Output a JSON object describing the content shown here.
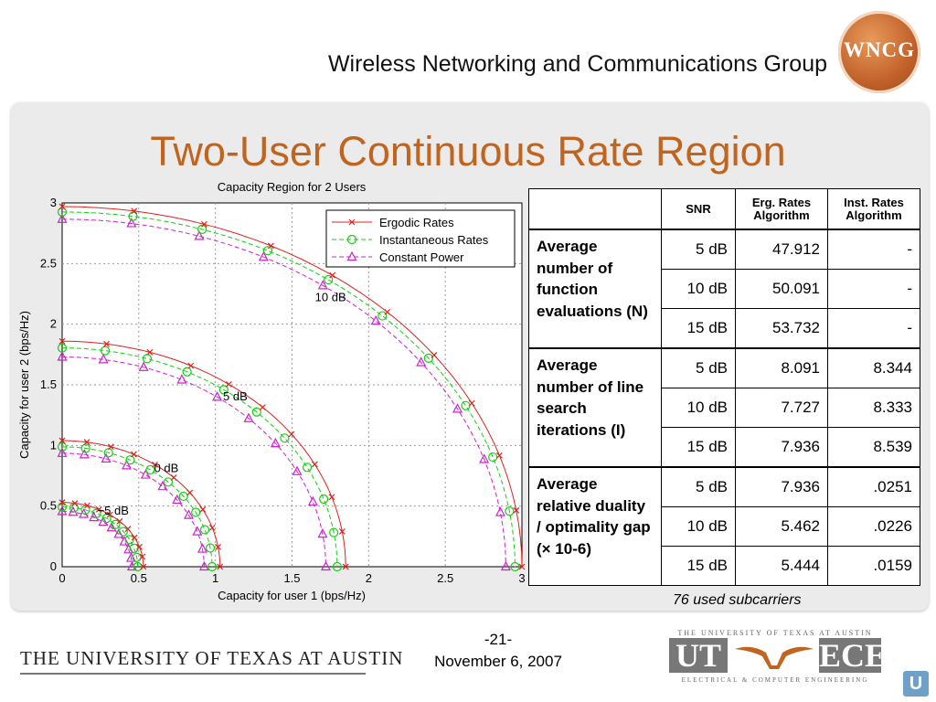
{
  "header": {
    "org_name": "Wireless Networking and Communications Group",
    "logo_text": "WNCG"
  },
  "slide": {
    "title": "Two-User Continuous Rate Region"
  },
  "colors": {
    "title": "#c0641e",
    "ergodic": "#e02020",
    "instantaneous": "#10d010",
    "constant": "#d020d0"
  },
  "chart_data": {
    "type": "line",
    "title": "Capacity Region for 2 Users",
    "xlabel": "Capacity for user 1 (bps/Hz)",
    "ylabel": "Capacity for user 2 (bps/Hz)",
    "xlim": [
      0,
      3
    ],
    "ylim": [
      0,
      3
    ],
    "xticks": [
      "0",
      "0.5",
      "1",
      "1.5",
      "2",
      "2.5",
      "3"
    ],
    "yticks": [
      "0",
      "0.5",
      "1",
      "1.5",
      "2",
      "2.5",
      "3"
    ],
    "grid": true,
    "legend_position": "top-right",
    "legend": [
      "Ergodic Rates",
      "Instantaneous Rates",
      "Constant Power"
    ],
    "snr_labels": [
      {
        "text": "10 dB",
        "x": 1.65,
        "y": 2.19
      },
      {
        "text": "5 dB",
        "x": 1.05,
        "y": 1.37
      },
      {
        "text": "0 dB",
        "x": 0.6,
        "y": 0.78
      },
      {
        "text": "−5 dB",
        "x": 0.23,
        "y": 0.43
      }
    ],
    "curves": [
      {
        "snr": "10 dB",
        "x_max": 3.0,
        "y_max": 2.97,
        "inst_scale": 0.985,
        "const_scale": 0.965
      },
      {
        "snr": "5 dB",
        "x_max": 1.85,
        "y_max": 1.86,
        "inst_scale": 0.97,
        "const_scale": 0.93
      },
      {
        "snr": "0 dB",
        "x_max": 1.03,
        "y_max": 1.04,
        "inst_scale": 0.95,
        "const_scale": 0.9
      },
      {
        "snr": "-5 dB",
        "x_max": 0.53,
        "y_max": 0.53,
        "inst_scale": 0.93,
        "const_scale": 0.86
      }
    ]
  },
  "table": {
    "headers": [
      "",
      "SNR",
      "Erg. Rates Algorithm",
      "Inst. Rates Algorithm"
    ],
    "groups": [
      {
        "label": "Average number of function evaluations (N)",
        "rows": [
          {
            "snr": "5 dB",
            "erg": "47.912",
            "inst": "-"
          },
          {
            "snr": "10 dB",
            "erg": "50.091",
            "inst": "-"
          },
          {
            "snr": "15 dB",
            "erg": "53.732",
            "inst": "-"
          }
        ]
      },
      {
        "label": "Average number of line search iterations (I)",
        "rows": [
          {
            "snr": "5 dB",
            "erg": "8.091",
            "inst": "8.344"
          },
          {
            "snr": "10 dB",
            "erg": "7.727",
            "inst": "8.333"
          },
          {
            "snr": "15 dB",
            "erg": "7.936",
            "inst": "8.539"
          }
        ]
      },
      {
        "label": "Average relative duality / optimality gap (× 10-6)",
        "rows": [
          {
            "snr": "5 dB",
            "erg": "7.936",
            "inst": ".0251"
          },
          {
            "snr": "10 dB",
            "erg": "5.462",
            "inst": ".0226"
          },
          {
            "snr": "15 dB",
            "erg": "5.444",
            "inst": ".0159"
          }
        ]
      }
    ],
    "note": "76 used subcarriers"
  },
  "footer": {
    "page": "-21-",
    "date": "November 6, 2007",
    "university": "THE UNIVERSITY OF TEXAS AT AUSTIN",
    "ece_top": "THE UNIVERSITY OF TEXAS AT AUSTIN",
    "ece_bottom": "ELECTRICAL & COMPUTER ENGINEERING",
    "ece_ut": "UT",
    "ece_ece": "ECE"
  }
}
